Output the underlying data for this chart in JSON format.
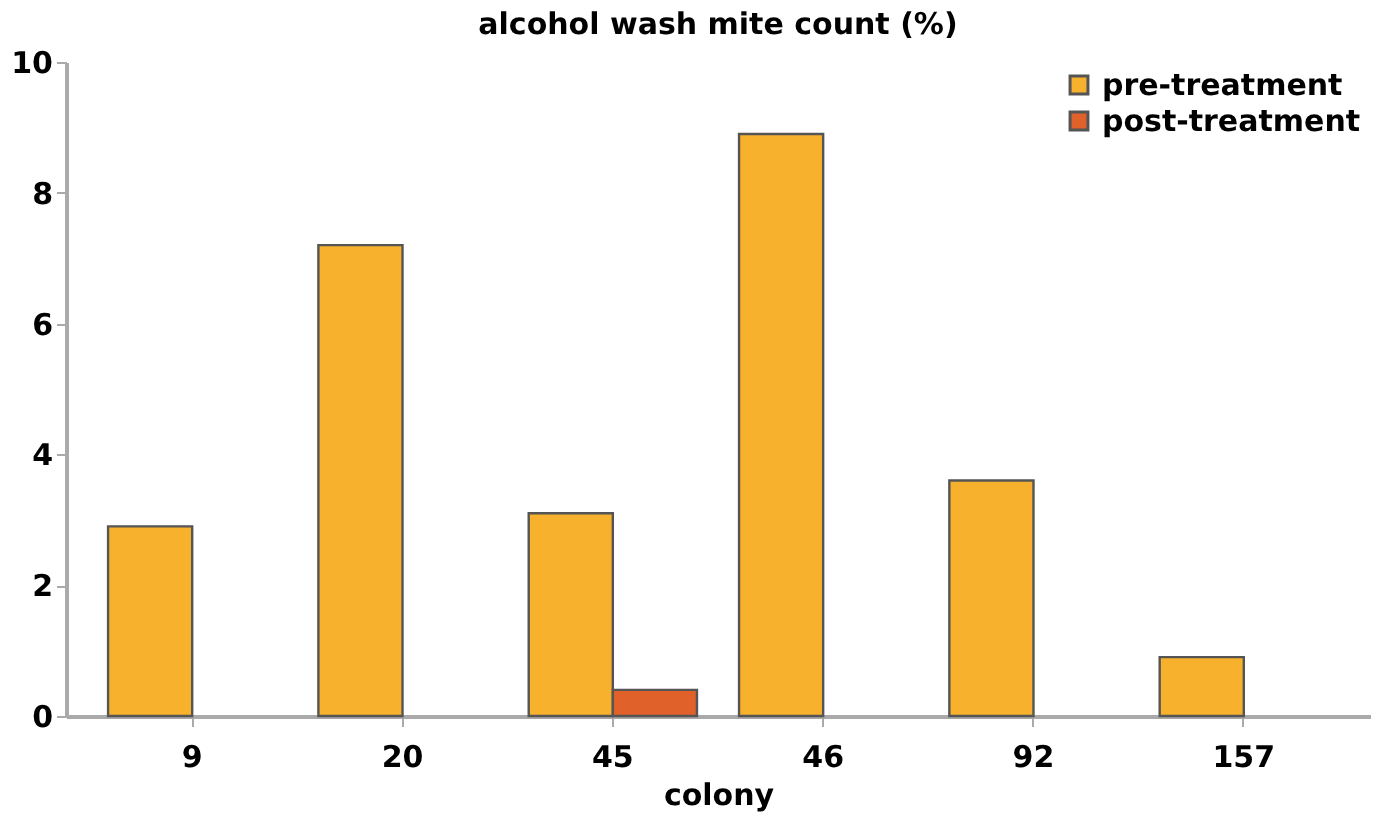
{
  "chart_data": {
    "type": "bar",
    "title": "alcohol wash mite count (%)",
    "xlabel": "colony",
    "categories": [
      "9",
      "20",
      "45",
      "46",
      "92",
      "157"
    ],
    "series": [
      {
        "name": "pre-treatment",
        "color": "#f8b12c",
        "values": [
          2.9,
          7.2,
          3.1,
          8.9,
          3.6,
          0.9
        ]
      },
      {
        "name": "post-treatment",
        "color": "#e0612a",
        "values": [
          null,
          null,
          0.4,
          null,
          null,
          null
        ]
      }
    ],
    "ylim": [
      0,
      10
    ],
    "yticks": [
      0,
      2,
      4,
      6,
      8,
      10
    ],
    "grid": false,
    "legend": "top right"
  }
}
